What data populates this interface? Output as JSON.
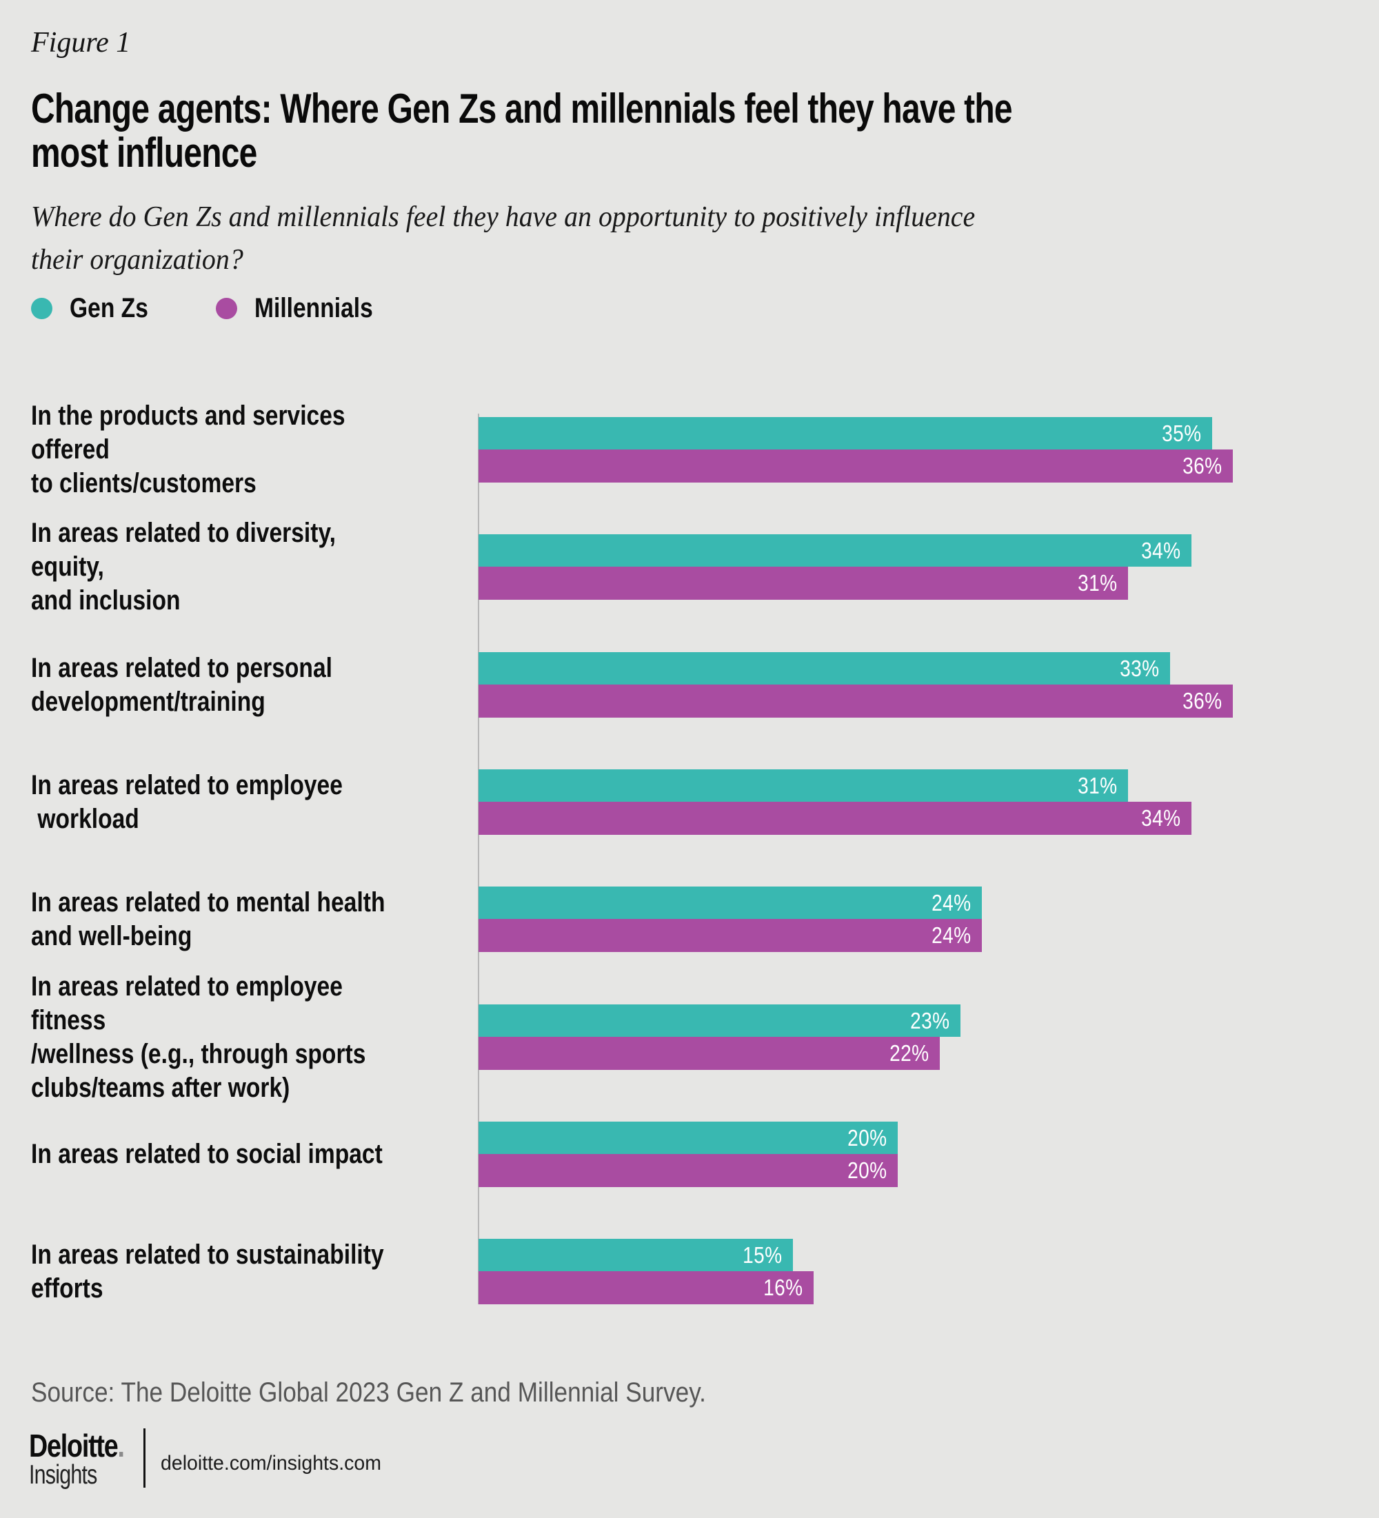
{
  "figure_label": "Figure 1",
  "title": "Change agents: Where Gen Zs and millennials feel they have the\nmost influence",
  "subtitle": "Where do Gen Zs and millennials feel they have an opportunity to positively influence\ntheir organization?",
  "legend": {
    "genz_label": "Gen Zs",
    "millennials_label": "Millennials"
  },
  "colors": {
    "background": "#e6e6e4",
    "genz": "#39b8b1",
    "millennials": "#a94ca1",
    "text": "#0d0d0d",
    "source_text": "#565656",
    "axis_line": "#b7b7b7",
    "value_label": "#ffffff"
  },
  "chart_data": {
    "type": "bar",
    "orientation": "horizontal",
    "title": "Change agents: Where Gen Zs and millennials feel they have the most influence",
    "subtitle": "Where do Gen Zs and millennials feel they have an opportunity to positively influence their organization?",
    "categories": [
      "In the products and services offered\nto clients/customers",
      "In areas related to diversity, equity,\nand inclusion",
      "In areas related to personal\ndevelopment/training",
      "In areas related to employee\n workload",
      "In areas related to mental health\nand well-being",
      "In areas related to employee fitness\n/wellness (e.g., through sports\nclubs/teams after work)",
      "In areas related to social impact",
      "In areas related to sustainability\nefforts"
    ],
    "series": [
      {
        "name": "Gen Zs",
        "color": "#39b8b1",
        "values": [
          35,
          34,
          33,
          31,
          24,
          23,
          20,
          15
        ]
      },
      {
        "name": "Millennials",
        "color": "#a94ca1",
        "values": [
          36,
          31,
          36,
          34,
          24,
          22,
          20,
          16
        ]
      }
    ],
    "value_suffix": "%",
    "value_labels": "inside-end",
    "xlim": [
      0,
      40
    ],
    "x_axis_ticks": "hidden",
    "grid": false,
    "legend_position": "top-left"
  },
  "source": "Source: The Deloitte Global 2023 Gen Z and Millennial Survey.",
  "footer": {
    "brand": "Deloitte",
    "brand_dot": ".",
    "sub_brand": "Insights",
    "url": "deloitte.com/insights.com"
  }
}
